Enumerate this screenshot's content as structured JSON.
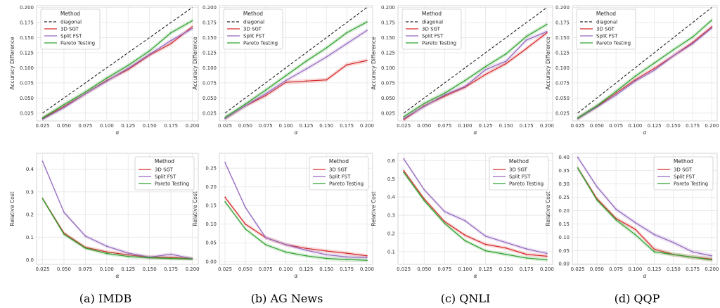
{
  "figure": {
    "captions": [
      "(a) IMDB",
      "(b) AG News",
      "(c) QNLI",
      "(d) QQP"
    ]
  },
  "colors": {
    "diagonal": "#222222",
    "3D SGT": "#d62728",
    "Split FST": "#9467bd",
    "Pareto Testing": "#2ca02c",
    "grid": "#e5e5e5"
  },
  "chart_data": [
    {
      "type": "line",
      "panel": "(a) IMDB top",
      "xlabel": "α",
      "ylabel": "Accuracy Difference",
      "xlim": [
        0.018,
        0.207
      ],
      "ylim": [
        0.012,
        0.203
      ],
      "xticks": [
        0.025,
        0.05,
        0.075,
        0.1,
        0.125,
        0.15,
        0.175,
        0.2
      ],
      "xtick_labels": [
        "0.025",
        "0.050",
        "0.075",
        "0.100",
        "0.125",
        "0.150",
        "0.175",
        "0.200"
      ],
      "yticks": [
        0.025,
        0.05,
        0.075,
        0.1,
        0.125,
        0.15,
        0.175,
        0.2
      ],
      "ytick_labels": [
        "0.025",
        "0.050",
        "0.075",
        "0.100",
        "0.125",
        "0.150",
        "0.175",
        "0.200"
      ],
      "grid": true,
      "legend": {
        "title": "Method",
        "position": "top-left",
        "entries": [
          "diagonal",
          "3D SGT",
          "Split FST",
          "Pareto Testing"
        ]
      },
      "x": [
        0.025,
        0.05,
        0.075,
        0.1,
        0.125,
        0.15,
        0.175,
        0.2
      ],
      "series": [
        {
          "name": "diagonal",
          "values": [
            0.025,
            0.05,
            0.075,
            0.1,
            0.125,
            0.15,
            0.175,
            0.2
          ]
        },
        {
          "name": "3D SGT",
          "values": [
            0.016,
            0.036,
            0.057,
            0.079,
            0.097,
            0.121,
            0.14,
            0.168
          ]
        },
        {
          "name": "Split FST",
          "values": [
            0.015,
            0.034,
            0.057,
            0.078,
            0.099,
            0.122,
            0.145,
            0.165
          ]
        },
        {
          "name": "Pareto Testing",
          "values": [
            0.017,
            0.039,
            0.06,
            0.083,
            0.104,
            0.128,
            0.158,
            0.178
          ]
        }
      ]
    },
    {
      "type": "line",
      "panel": "(b) AG News top",
      "xlabel": "α",
      "ylabel": "Accuracy Difference",
      "xlim": [
        0.018,
        0.207
      ],
      "ylim": [
        0.012,
        0.203
      ],
      "xticks": [
        0.025,
        0.05,
        0.075,
        0.1,
        0.125,
        0.15,
        0.175,
        0.2
      ],
      "xtick_labels": [
        "0.025",
        "0.050",
        "0.075",
        "0.100",
        "0.125",
        "0.150",
        "0.175",
        "0.200"
      ],
      "yticks": [
        0.025,
        0.05,
        0.075,
        0.1,
        0.125,
        0.15,
        0.175,
        0.2
      ],
      "ytick_labels": [
        "0.025",
        "0.050",
        "0.075",
        "0.100",
        "0.125",
        "0.150",
        "0.175",
        "0.200"
      ],
      "grid": true,
      "legend": {
        "title": "Method",
        "position": "top-left",
        "entries": [
          "diagonal",
          "3D SGT",
          "Split FST",
          "Pareto Testing"
        ]
      },
      "x": [
        0.025,
        0.05,
        0.075,
        0.1,
        0.125,
        0.15,
        0.175,
        0.2
      ],
      "series": [
        {
          "name": "diagonal",
          "values": [
            0.025,
            0.05,
            0.075,
            0.1,
            0.125,
            0.15,
            0.175,
            0.2
          ]
        },
        {
          "name": "3D SGT",
          "values": [
            0.016,
            0.037,
            0.054,
            0.076,
            0.078,
            0.08,
            0.105,
            0.112
          ]
        },
        {
          "name": "Split FST",
          "values": [
            0.016,
            0.037,
            0.057,
            0.079,
            0.098,
            0.118,
            0.14,
            0.162
          ]
        },
        {
          "name": "Pareto Testing",
          "values": [
            0.018,
            0.04,
            0.063,
            0.087,
            0.111,
            0.133,
            0.158,
            0.176
          ]
        }
      ]
    },
    {
      "type": "line",
      "panel": "(c) QNLI top",
      "xlabel": "α",
      "ylabel": "Accuracy Difference",
      "xlim": [
        0.018,
        0.207
      ],
      "ylim": [
        0.012,
        0.203
      ],
      "xticks": [
        0.025,
        0.05,
        0.075,
        0.1,
        0.125,
        0.15,
        0.175,
        0.2
      ],
      "xtick_labels": [
        "0.025",
        "0.050",
        "0.075",
        "0.100",
        "0.125",
        "0.150",
        "0.175",
        "0.200"
      ],
      "yticks": [
        0.025,
        0.05,
        0.075,
        0.1,
        0.125,
        0.15,
        0.175,
        0.2
      ],
      "ytick_labels": [
        "0.025",
        "0.050",
        "0.075",
        "0.100",
        "0.125",
        "0.150",
        "0.175",
        "0.200"
      ],
      "grid": true,
      "legend": {
        "title": "Method",
        "position": "top-left",
        "entries": [
          "diagonal",
          "3D SGT",
          "Split FST",
          "Pareto Testing"
        ]
      },
      "x": [
        0.025,
        0.05,
        0.075,
        0.1,
        0.125,
        0.15,
        0.175,
        0.2
      ],
      "series": [
        {
          "name": "diagonal",
          "values": [
            0.025,
            0.05,
            0.075,
            0.1,
            0.125,
            0.15,
            0.175,
            0.2
          ]
        },
        {
          "name": "3D SGT",
          "values": [
            0.014,
            0.037,
            0.053,
            0.068,
            0.089,
            0.107,
            0.132,
            0.158
          ]
        },
        {
          "name": "Split FST",
          "values": [
            0.016,
            0.036,
            0.055,
            0.069,
            0.097,
            0.111,
            0.146,
            0.16
          ]
        },
        {
          "name": "Pareto Testing",
          "values": [
            0.019,
            0.041,
            0.058,
            0.079,
            0.102,
            0.123,
            0.152,
            0.172
          ]
        }
      ]
    },
    {
      "type": "line",
      "panel": "(d) QQP top",
      "xlabel": "α",
      "ylabel": "Accuracy Difference",
      "xlim": [
        0.018,
        0.207
      ],
      "ylim": [
        0.012,
        0.203
      ],
      "xticks": [
        0.025,
        0.05,
        0.075,
        0.1,
        0.125,
        0.15,
        0.175,
        0.2
      ],
      "xtick_labels": [
        "0.025",
        "0.050",
        "0.075",
        "0.100",
        "0.125",
        "0.150",
        "0.175",
        "0.200"
      ],
      "yticks": [
        0.025,
        0.05,
        0.075,
        0.1,
        0.125,
        0.15,
        0.175,
        0.2
      ],
      "ytick_labels": [
        "0.025",
        "0.050",
        "0.075",
        "0.100",
        "0.125",
        "0.150",
        "0.175",
        "0.200"
      ],
      "grid": true,
      "legend": {
        "title": "Method",
        "position": "top-left",
        "entries": [
          "diagonal",
          "3D SGT",
          "Split FST",
          "Pareto Testing"
        ]
      },
      "x": [
        0.025,
        0.05,
        0.075,
        0.1,
        0.125,
        0.15,
        0.175,
        0.2
      ],
      "series": [
        {
          "name": "diagonal",
          "values": [
            0.025,
            0.05,
            0.075,
            0.1,
            0.125,
            0.15,
            0.175,
            0.2
          ]
        },
        {
          "name": "3D SGT",
          "values": [
            0.016,
            0.036,
            0.058,
            0.08,
            0.099,
            0.12,
            0.142,
            0.168
          ]
        },
        {
          "name": "Split FST",
          "values": [
            0.016,
            0.035,
            0.055,
            0.078,
            0.096,
            0.12,
            0.14,
            0.166
          ]
        },
        {
          "name": "Pareto Testing",
          "values": [
            0.017,
            0.037,
            0.061,
            0.086,
            0.108,
            0.13,
            0.151,
            0.179
          ]
        }
      ]
    },
    {
      "type": "line",
      "panel": "(a) IMDB bottom",
      "xlabel": "α",
      "ylabel": "Relative Cost",
      "xlim": [
        0.018,
        0.207
      ],
      "ylim": [
        -0.02,
        0.47
      ],
      "xticks": [
        0.025,
        0.05,
        0.075,
        0.1,
        0.125,
        0.15,
        0.175,
        0.2
      ],
      "xtick_labels": [
        "0.025",
        "0.050",
        "0.075",
        "0.100",
        "0.125",
        "0.150",
        "0.175",
        "0.200"
      ],
      "yticks": [
        0.0,
        0.1,
        0.2,
        0.3,
        0.4
      ],
      "ytick_labels": [
        "0.0",
        "0.1",
        "0.2",
        "0.3",
        "0.4"
      ],
      "grid": true,
      "legend": {
        "title": "Method",
        "position": "top-right",
        "entries": [
          "3D SGT",
          "Split FST",
          "Pareto Testing"
        ]
      },
      "x": [
        0.025,
        0.05,
        0.075,
        0.1,
        0.125,
        0.15,
        0.175,
        0.2
      ],
      "series": [
        {
          "name": "3D SGT",
          "values": [
            0.27,
            0.118,
            0.055,
            0.035,
            0.022,
            0.012,
            0.01,
            0.006
          ]
        },
        {
          "name": "Split FST",
          "values": [
            0.435,
            0.21,
            0.105,
            0.06,
            0.03,
            0.012,
            0.025,
            0.005
          ]
        },
        {
          "name": "Pareto Testing",
          "values": [
            0.27,
            0.113,
            0.052,
            0.028,
            0.015,
            0.009,
            0.006,
            0.004
          ]
        }
      ]
    },
    {
      "type": "line",
      "panel": "(b) AG News bottom",
      "xlabel": "α",
      "ylabel": "Relative Cost",
      "xlim": [
        0.018,
        0.207
      ],
      "ylim": [
        -0.008,
        0.29
      ],
      "xticks": [
        0.025,
        0.05,
        0.075,
        0.1,
        0.125,
        0.15,
        0.175,
        0.2
      ],
      "xtick_labels": [
        "0.025",
        "0.050",
        "0.075",
        "0.100",
        "0.125",
        "0.150",
        "0.175",
        "0.200"
      ],
      "yticks": [
        0.0,
        0.05,
        0.1,
        0.15,
        0.2,
        0.25
      ],
      "ytick_labels": [
        "0.00",
        "0.05",
        "0.10",
        "0.15",
        "0.20",
        "0.25"
      ],
      "grid": true,
      "legend": {
        "title": "Method",
        "position": "top-right",
        "entries": [
          "3D SGT",
          "Split FST",
          "Pareto Testing"
        ]
      },
      "x": [
        0.025,
        0.05,
        0.075,
        0.1,
        0.125,
        0.15,
        0.175,
        0.2
      ],
      "series": [
        {
          "name": "3D SGT",
          "values": [
            0.172,
            0.1,
            0.064,
            0.045,
            0.035,
            0.028,
            0.022,
            0.015
          ]
        },
        {
          "name": "Split FST",
          "values": [
            0.265,
            0.145,
            0.064,
            0.045,
            0.03,
            0.018,
            0.012,
            0.01
          ]
        },
        {
          "name": "Pareto Testing",
          "values": [
            0.16,
            0.087,
            0.045,
            0.025,
            0.015,
            0.008,
            0.005,
            0.003
          ]
        }
      ]
    },
    {
      "type": "line",
      "panel": "(c) QNLI bottom",
      "xlabel": "α",
      "ylabel": "Relative Cost",
      "xlim": [
        0.018,
        0.207
      ],
      "ylim": [
        0.03,
        0.64
      ],
      "xticks": [
        0.025,
        0.05,
        0.075,
        0.1,
        0.125,
        0.15,
        0.175,
        0.2
      ],
      "xtick_labels": [
        "0.025",
        "0.050",
        "0.075",
        "0.100",
        "0.125",
        "0.150",
        "0.175",
        "0.200"
      ],
      "yticks": [
        0.1,
        0.2,
        0.3,
        0.4,
        0.5,
        0.6
      ],
      "ytick_labels": [
        "0.1",
        "0.2",
        "0.3",
        "0.4",
        "0.5",
        "0.6"
      ],
      "grid": true,
      "legend": {
        "title": "Method",
        "position": "top-right",
        "entries": [
          "3D SGT",
          "Split FST",
          "Pareto Testing"
        ]
      },
      "x": [
        0.025,
        0.05,
        0.075,
        0.1,
        0.125,
        0.15,
        0.175,
        0.2
      ],
      "series": [
        {
          "name": "3D SGT",
          "values": [
            0.545,
            0.39,
            0.265,
            0.19,
            0.14,
            0.12,
            0.085,
            0.075
          ]
        },
        {
          "name": "Split FST",
          "values": [
            0.61,
            0.44,
            0.32,
            0.27,
            0.185,
            0.15,
            0.115,
            0.09
          ]
        },
        {
          "name": "Pareto Testing",
          "values": [
            0.535,
            0.38,
            0.255,
            0.16,
            0.105,
            0.085,
            0.065,
            0.055
          ]
        }
      ]
    },
    {
      "type": "line",
      "panel": "(d) QQP bottom",
      "xlabel": "α",
      "ylabel": "Relative Cost",
      "xlim": [
        0.018,
        0.207
      ],
      "ylim": [
        -0.002,
        0.415
      ],
      "xticks": [
        0.025,
        0.05,
        0.075,
        0.1,
        0.125,
        0.15,
        0.175,
        0.2
      ],
      "xtick_labels": [
        "0.025",
        "0.050",
        "0.075",
        "0.100",
        "0.125",
        "0.150",
        "0.175",
        "0.200"
      ],
      "yticks": [
        0.0,
        0.05,
        0.1,
        0.15,
        0.2,
        0.25,
        0.3,
        0.35,
        0.4
      ],
      "ytick_labels": [
        "0.00",
        "0.05",
        "0.10",
        "0.15",
        "0.20",
        "0.25",
        "0.30",
        "0.35",
        "0.40"
      ],
      "grid": true,
      "legend": {
        "title": "Method",
        "position": "top-right",
        "entries": [
          "3D SGT",
          "Split FST",
          "Pareto Testing"
        ]
      },
      "x": [
        0.025,
        0.05,
        0.075,
        0.1,
        0.125,
        0.15,
        0.175,
        0.2
      ],
      "series": [
        {
          "name": "3D SGT",
          "values": [
            0.36,
            0.245,
            0.17,
            0.13,
            0.055,
            0.035,
            0.025,
            0.018
          ]
        },
        {
          "name": "Split FST",
          "values": [
            0.4,
            0.29,
            0.205,
            0.155,
            0.11,
            0.08,
            0.045,
            0.03
          ]
        },
        {
          "name": "Pareto Testing",
          "values": [
            0.36,
            0.24,
            0.165,
            0.11,
            0.045,
            0.035,
            0.025,
            0.015
          ]
        }
      ]
    }
  ]
}
